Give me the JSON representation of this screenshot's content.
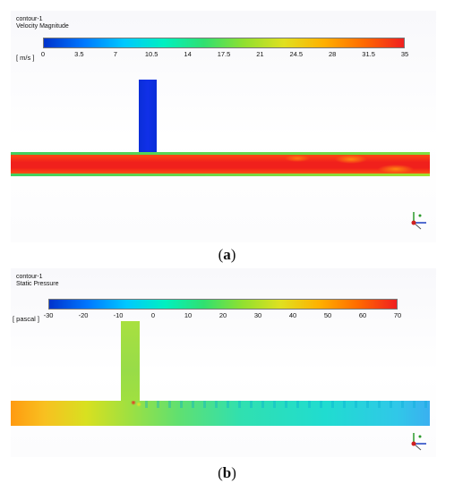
{
  "panel_a": {
    "contour_name": "contour-1",
    "variable": "Velocity Magnitude",
    "units": "[ m/s ]",
    "ticks": [
      "0",
      "3.5",
      "7",
      "10.5",
      "14",
      "17.5",
      "21",
      "24.5",
      "28",
      "31.5",
      "35"
    ],
    "caption_label": "a"
  },
  "panel_b": {
    "contour_name": "contour-1",
    "variable": "Static Pressure",
    "units": "[ pascal ]",
    "ticks": [
      "-30",
      "-20",
      "-10",
      "0",
      "10",
      "20",
      "30",
      "40",
      "50",
      "60",
      "70"
    ],
    "caption_label": "b"
  },
  "colormap": [
    "#0033cc",
    "#0078ff",
    "#00c8ff",
    "#00f0c0",
    "#30e070",
    "#90e030",
    "#e0e020",
    "#ffb000",
    "#ff6a00",
    "#f02020"
  ],
  "caption_paren_open": "(",
  "caption_paren_close": ")"
}
